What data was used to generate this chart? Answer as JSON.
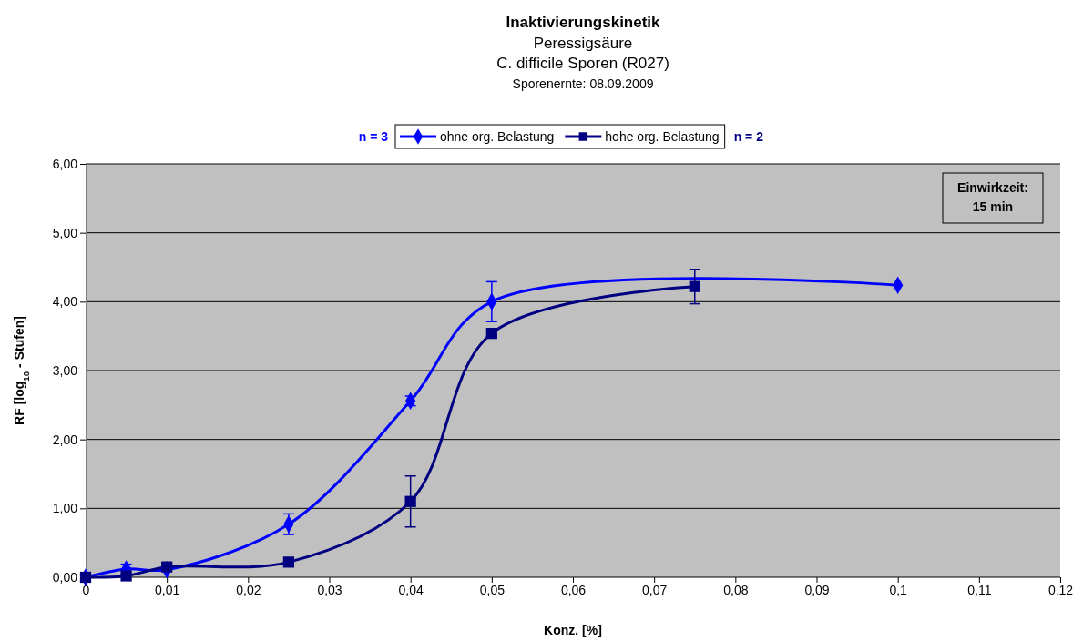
{
  "chart_data": {
    "type": "line",
    "title": "Inaktivierungskinetik",
    "subtitle": "Peressigsäure\nC. difficile Sporen (R027)\nSporenernte: 08.09.2009",
    "xlabel": "Konz. [%]",
    "ylabel": "RF [log$_{10}$ - Stufen]",
    "annotations": [
      "n = 3",
      "n = 2",
      "Einwirkzeit:\n15 min"
    ],
    "series": [
      {
        "name": "ohne org. Belastung",
        "color": "#0000ff",
        "marker": "diamond",
        "x": [
          0,
          0.005,
          0.01,
          0.025,
          0.04,
          0.05,
          0.075,
          0.1
        ],
        "values": [
          0,
          0.12,
          0.11,
          0.77,
          2.56,
          4.0,
          null,
          4.24
        ],
        "errors": [
          null,
          0.07,
          null,
          0.15,
          0.07,
          0.29,
          null,
          null
        ]
      },
      {
        "name": "hohe org. Belastung",
        "color": "#000080",
        "marker": "square",
        "x": [
          0,
          0.005,
          0.01,
          0.025,
          0.04,
          0.05,
          0.075
        ],
        "values": [
          0,
          0.02,
          0.15,
          0.22,
          1.1,
          3.54,
          4.22
        ],
        "errors": [
          null,
          null,
          null,
          null,
          0.37,
          null,
          0.25
        ]
      }
    ],
    "xlim": [
      0,
      0.12
    ],
    "xticks": [
      0,
      {
        "value": 0.01,
        "label": "0,01"
      },
      {
        "value": 0.02,
        "label": "0,02"
      },
      {
        "value": 0.03,
        "label": "0,03"
      },
      {
        "value": 0.04,
        "label": "0,04"
      },
      {
        "value": 0.05,
        "label": "0,05"
      },
      {
        "value": 0.06,
        "label": "0,06"
      },
      {
        "value": 0.07,
        "label": "0,07"
      },
      {
        "value": 0.08,
        "label": "0,08"
      },
      {
        "value": 0.09,
        "label": "0,09"
      },
      {
        "value": 0.1,
        "label": "0,1"
      },
      {
        "value": 0.11,
        "label": "0,11"
      },
      {
        "value": 0.12,
        "label": "0,12"
      }
    ],
    "ylim": [
      0,
      6
    ],
    "yticks": [
      {
        "value": 0,
        "label": "0,00"
      },
      {
        "value": 1,
        "label": "1,00"
      },
      {
        "value": 2,
        "label": "2,00"
      },
      {
        "value": 3,
        "label": "3,00"
      },
      {
        "value": 4,
        "label": "4,00"
      },
      {
        "value": 5,
        "label": "5,00"
      },
      {
        "value": 6,
        "label": "6,00"
      }
    ],
    "grid": "y",
    "legend": "top",
    "line_style": "solid"
  }
}
